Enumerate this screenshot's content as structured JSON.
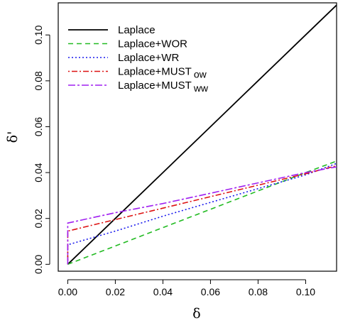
{
  "chart_data": {
    "type": "line",
    "xlabel": "δ",
    "ylabel": "δ'",
    "xlim": [
      -0.004,
      0.113
    ],
    "ylim": [
      -0.003,
      0.114
    ],
    "x_ticks": [
      0.0,
      0.02,
      0.04,
      0.06,
      0.08,
      0.1
    ],
    "x_tick_labels": [
      "0.00",
      "0.02",
      "0.04",
      "0.06",
      "0.08",
      "0.10"
    ],
    "y_ticks": [
      0.0,
      0.02,
      0.04,
      0.06,
      0.08,
      0.1
    ],
    "y_tick_labels": [
      "0.00",
      "0.02",
      "0.04",
      "0.06",
      "0.08",
      "0.10"
    ],
    "grid": false,
    "legend_position": "top-left",
    "series": [
      {
        "name": "Laplace",
        "color": "#000000",
        "dash": "solid",
        "x": [
          0.0,
          0.02,
          0.04,
          0.06,
          0.08,
          0.1,
          0.113
        ],
        "y": [
          0.0,
          0.02,
          0.04,
          0.06,
          0.08,
          0.1,
          0.113
        ]
      },
      {
        "name": "Laplace+WOR",
        "color": "#22bb22",
        "dash": "dashed",
        "x": [
          0.0,
          0.02,
          0.04,
          0.06,
          0.08,
          0.1,
          0.113
        ],
        "y": [
          0.0,
          0.008,
          0.016,
          0.024,
          0.032,
          0.04,
          0.045
        ]
      },
      {
        "name": "Laplace+WR",
        "color": "#1a1aee",
        "dash": "dotted",
        "x": [
          0.0,
          0.0,
          0.02,
          0.04,
          0.06,
          0.08,
          0.1,
          0.113
        ],
        "y": [
          0.0,
          0.0085,
          0.0145,
          0.021,
          0.027,
          0.033,
          0.039,
          0.044
        ]
      },
      {
        "name": "Laplace+MUST",
        "suffix": "ow",
        "color": "#dd1111",
        "dash": "dotdash",
        "x": [
          0.0,
          0.0,
          0.02,
          0.04,
          0.06,
          0.08,
          0.1,
          0.113
        ],
        "y": [
          0.0,
          0.0145,
          0.0195,
          0.0245,
          0.0295,
          0.0345,
          0.0395,
          0.043
        ]
      },
      {
        "name": "Laplace+MUST",
        "suffix": "ww",
        "color": "#a020f0",
        "dash": "longdash",
        "x": [
          0.0,
          0.0,
          0.02,
          0.04,
          0.06,
          0.08,
          0.1,
          0.113
        ],
        "y": [
          0.0,
          0.018,
          0.0225,
          0.0265,
          0.031,
          0.0355,
          0.04,
          0.0425
        ]
      }
    ]
  }
}
